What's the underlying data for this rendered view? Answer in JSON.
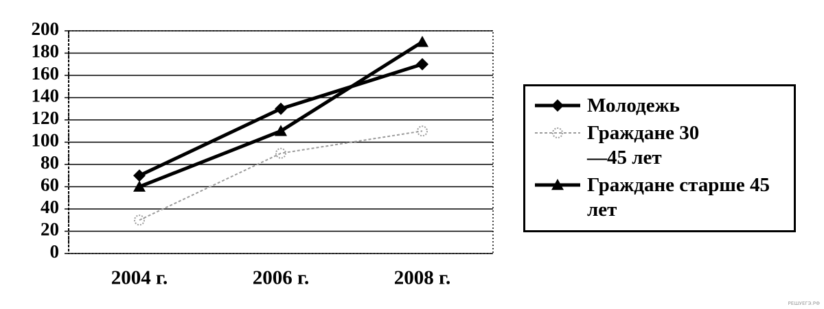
{
  "chart_data": {
    "type": "line",
    "categories": [
      "2004 г.",
      "2006 г.",
      "2008 г."
    ],
    "series": [
      {
        "name": "Молодежь",
        "color": "#000000",
        "marker": "diamond",
        "line_style": "solid",
        "values": [
          70,
          130,
          170
        ]
      },
      {
        "name": "Граждане 30—45 лет",
        "color": "#9a9a9a",
        "marker": "circle",
        "line_style": "dashed",
        "values": [
          30,
          90,
          110
        ]
      },
      {
        "name": "Граждане старше 45 лет",
        "color": "#000000",
        "marker": "triangle",
        "line_style": "solid",
        "values": [
          60,
          110,
          190
        ]
      }
    ],
    "ylim": [
      0,
      200
    ],
    "yticks": [
      0,
      20,
      40,
      60,
      80,
      100,
      120,
      140,
      160,
      180,
      200
    ],
    "grid": true
  },
  "watermark": "РЕШУЕГЭ.РФ"
}
